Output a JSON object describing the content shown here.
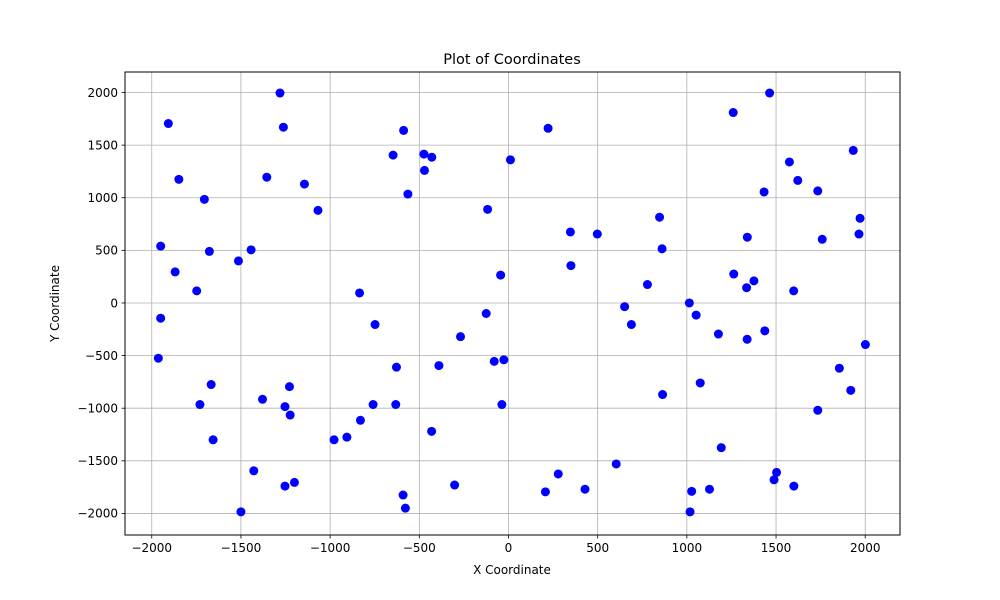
{
  "chart_data": {
    "type": "scatter",
    "title": "Plot of Coordinates",
    "xlabel": "X Coordinate",
    "ylabel": "Y Coordinate",
    "xlim": [
      -2150,
      2195
    ],
    "ylim": [
      -2205,
      2195
    ],
    "xticks": [
      -2000,
      -1500,
      -1000,
      -500,
      0,
      500,
      1000,
      1500,
      2000
    ],
    "yticks": [
      -2000,
      -1500,
      -1000,
      -500,
      0,
      500,
      1000,
      1500,
      2000
    ],
    "xtick_labels": [
      "−2000",
      "−1500",
      "−1000",
      "−500",
      "0",
      "500",
      "1000",
      "1500",
      "2000"
    ],
    "ytick_labels": [
      "−2000",
      "−1500",
      "−1000",
      "−500",
      "0",
      "500",
      "1000",
      "1500",
      "2000"
    ],
    "grid": true,
    "marker_color": "#0000ff",
    "points": [
      [
        -1907,
        1705
      ],
      [
        -1950,
        540
      ],
      [
        -1869,
        295
      ],
      [
        -1848,
        1175
      ],
      [
        -1950,
        -145
      ],
      [
        -1963,
        -525
      ],
      [
        -1748,
        115
      ],
      [
        -1730,
        -965
      ],
      [
        -1705,
        985
      ],
      [
        -1677,
        490
      ],
      [
        -1667,
        -775
      ],
      [
        -1656,
        -1300
      ],
      [
        -1514,
        400
      ],
      [
        -1500,
        -1985
      ],
      [
        -1443,
        505
      ],
      [
        -1428,
        -1595
      ],
      [
        -1379,
        -915
      ],
      [
        -1355,
        1195
      ],
      [
        -1281,
        1995
      ],
      [
        -1262,
        1670
      ],
      [
        -1253,
        -985
      ],
      [
        -1253,
        -1740
      ],
      [
        -1228,
        -795
      ],
      [
        -1224,
        -1065
      ],
      [
        -1200,
        -1705
      ],
      [
        -1144,
        1130
      ],
      [
        -1068,
        880
      ],
      [
        -978,
        -1300
      ],
      [
        -906,
        -1275
      ],
      [
        -835,
        95
      ],
      [
        -830,
        -1115
      ],
      [
        -759,
        -965
      ],
      [
        -748,
        -205
      ],
      [
        -647,
        1405
      ],
      [
        -632,
        -965
      ],
      [
        -628,
        -610
      ],
      [
        -591,
        -1825
      ],
      [
        -588,
        1640
      ],
      [
        -578,
        -1950
      ],
      [
        -564,
        1035
      ],
      [
        -474,
        1415
      ],
      [
        -471,
        1260
      ],
      [
        -430,
        1385
      ],
      [
        -431,
        -1220
      ],
      [
        -390,
        -595
      ],
      [
        -302,
        -1730
      ],
      [
        -269,
        -320
      ],
      [
        -125,
        -100
      ],
      [
        -117,
        890
      ],
      [
        -80,
        -555
      ],
      [
        -44,
        265
      ],
      [
        -37,
        -965
      ],
      [
        -26,
        -540
      ],
      [
        11,
        1360
      ],
      [
        207,
        -1795
      ],
      [
        222,
        1660
      ],
      [
        279,
        -1625
      ],
      [
        347,
        675
      ],
      [
        350,
        355
      ],
      [
        429,
        -1770
      ],
      [
        498,
        655
      ],
      [
        604,
        -1530
      ],
      [
        651,
        -35
      ],
      [
        689,
        -205
      ],
      [
        779,
        175
      ],
      [
        847,
        815
      ],
      [
        861,
        515
      ],
      [
        864,
        -870
      ],
      [
        1014,
        0
      ],
      [
        1018,
        -1985
      ],
      [
        1027,
        -1790
      ],
      [
        1052,
        -115
      ],
      [
        1075,
        -760
      ],
      [
        1127,
        -1770
      ],
      [
        1177,
        -295
      ],
      [
        1193,
        -1375
      ],
      [
        1260,
        1810
      ],
      [
        1263,
        275
      ],
      [
        1335,
        145
      ],
      [
        1339,
        625
      ],
      [
        1338,
        -345
      ],
      [
        1376,
        210
      ],
      [
        1433,
        1055
      ],
      [
        1437,
        -265
      ],
      [
        1464,
        1995
      ],
      [
        1489,
        -1680
      ],
      [
        1503,
        -1610
      ],
      [
        1575,
        1340
      ],
      [
        1599,
        115
      ],
      [
        1600,
        -1740
      ],
      [
        1622,
        1165
      ],
      [
        1734,
        1065
      ],
      [
        1734,
        -1020
      ],
      [
        1759,
        605
      ],
      [
        1855,
        -620
      ],
      [
        1919,
        -830
      ],
      [
        1933,
        1450
      ],
      [
        1965,
        655
      ],
      [
        1971,
        805
      ],
      [
        2001,
        -395
      ]
    ]
  }
}
